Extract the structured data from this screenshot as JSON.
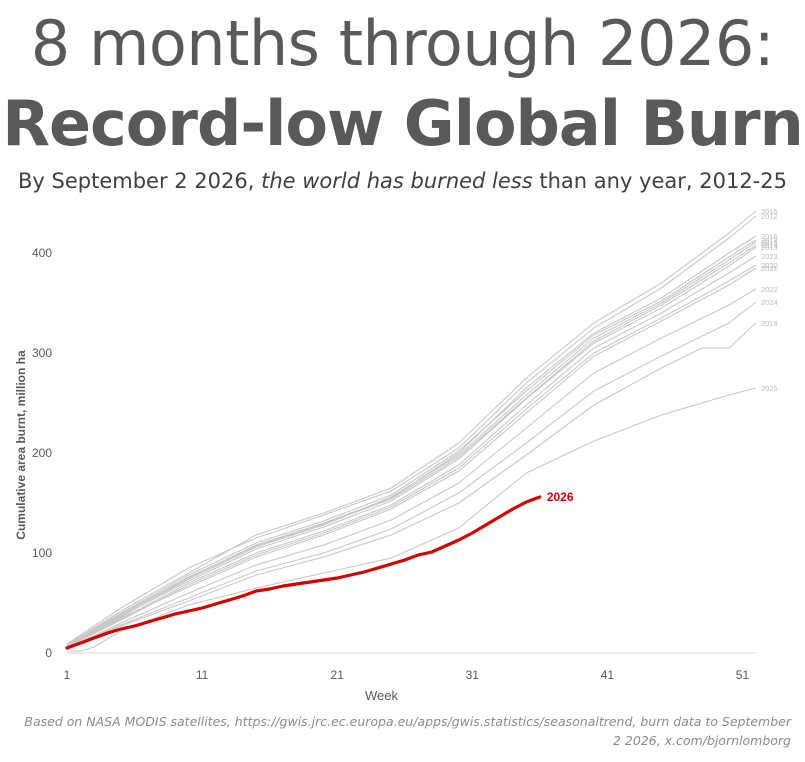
{
  "header": {
    "title_line1": "8 months through 2026:",
    "title_line2": "Record-low Global Burn",
    "subtitle_pre": "By September 2 2026, ",
    "subtitle_em": "the world has burned less",
    "subtitle_post": " than any year, 2012-25"
  },
  "footnote": "Based on NASA MODIS satellites, https://gwis.jrc.ec.europa.eu/apps/gwis.statistics/seasonaltrend, burn data to September 2 2026, x.com/bjornlomborg",
  "colors": {
    "highlight": "#d40000",
    "other_years": "#c8c8c8",
    "axis_text": "#595959",
    "year_label": "#bdbdbd"
  },
  "chart_data": {
    "type": "line",
    "xlabel": "Week",
    "ylabel": "Cumulative area burnt, million ha",
    "xlim": [
      1,
      52
    ],
    "ylim": [
      0,
      440
    ],
    "x_ticks": [
      1,
      11,
      21,
      31,
      41,
      51
    ],
    "y_ticks": [
      0,
      100,
      200,
      300,
      400
    ],
    "grid": false,
    "highlight_series": "2026",
    "series": [
      {
        "name": "2026",
        "x": [
          1,
          2,
          3,
          4,
          5,
          6,
          7,
          8,
          9,
          10,
          11,
          12,
          13,
          14,
          15,
          16,
          17,
          18,
          19,
          20,
          21,
          22,
          23,
          24,
          25,
          26,
          27,
          28,
          29,
          30,
          31,
          32,
          33,
          34,
          35,
          36
        ],
        "values": [
          5,
          10,
          15,
          20,
          24,
          27,
          31,
          35,
          39,
          42,
          45,
          49,
          53,
          57,
          62,
          64,
          67,
          69,
          71,
          73,
          75,
          78,
          81,
          85,
          89,
          93,
          98,
          101,
          107,
          113,
          120,
          128,
          136,
          144,
          151,
          156
        ]
      },
      {
        "name": "2015",
        "x": [
          1,
          5,
          10,
          15,
          20,
          25,
          30,
          35,
          40,
          45,
          50,
          52
        ],
        "values": [
          8,
          42,
          80,
          118,
          140,
          165,
          210,
          275,
          330,
          370,
          420,
          442
        ]
      },
      {
        "name": "2012",
        "x": [
          1,
          5,
          10,
          15,
          20,
          25,
          30,
          35,
          40,
          45,
          50,
          52
        ],
        "values": [
          9,
          45,
          85,
          115,
          138,
          162,
          205,
          270,
          325,
          365,
          415,
          437
        ]
      },
      {
        "name": "2016",
        "x": [
          1,
          5,
          10,
          15,
          20,
          25,
          30,
          35,
          40,
          45,
          50,
          52
        ],
        "values": [
          7,
          38,
          75,
          108,
          130,
          155,
          200,
          265,
          320,
          355,
          400,
          417
        ]
      },
      {
        "name": "2017",
        "x": [
          1,
          5,
          10,
          15,
          20,
          25,
          30,
          35,
          40,
          45,
          50,
          52
        ],
        "values": [
          8,
          40,
          78,
          110,
          132,
          158,
          202,
          262,
          318,
          352,
          396,
          413
        ]
      },
      {
        "name": "2019",
        "x": [
          1,
          5,
          10,
          15,
          20,
          25,
          30,
          35,
          40,
          45,
          50,
          52
        ],
        "values": [
          6,
          36,
          74,
          106,
          128,
          156,
          198,
          258,
          315,
          350,
          393,
          411
        ]
      },
      {
        "name": "2014",
        "x": [
          1,
          5,
          10,
          15,
          20,
          25,
          30,
          35,
          40,
          45,
          50,
          52
        ],
        "values": [
          8,
          39,
          76,
          107,
          129,
          154,
          196,
          255,
          312,
          348,
          390,
          408
        ]
      },
      {
        "name": "2013",
        "x": [
          1,
          5,
          10,
          15,
          20,
          25,
          30,
          35,
          40,
          45,
          50,
          52
        ],
        "values": [
          7,
          37,
          72,
          104,
          126,
          152,
          194,
          254,
          310,
          345,
          387,
          406
        ]
      },
      {
        "name": "2023",
        "x": [
          1,
          5,
          10,
          15,
          20,
          25,
          30,
          35,
          40,
          45,
          50,
          52
        ],
        "values": [
          6,
          34,
          70,
          100,
          122,
          148,
          188,
          248,
          305,
          340,
          380,
          397
        ]
      },
      {
        "name": "2020",
        "x": [
          1,
          5,
          10,
          15,
          20,
          25,
          30,
          35,
          40,
          45,
          50,
          52
        ],
        "values": [
          6,
          33,
          68,
          98,
          120,
          146,
          185,
          244,
          300,
          335,
          372,
          388
        ]
      },
      {
        "name": "2021",
        "x": [
          1,
          5,
          10,
          15,
          20,
          25,
          30,
          35,
          40,
          45,
          50,
          52
        ],
        "values": [
          7,
          35,
          66,
          96,
          118,
          144,
          182,
          240,
          297,
          332,
          368,
          385
        ]
      },
      {
        "name": "2022",
        "x": [
          1,
          5,
          10,
          15,
          20,
          25,
          30,
          35,
          40,
          45,
          50,
          52
        ],
        "values": [
          5,
          30,
          60,
          88,
          108,
          133,
          170,
          225,
          280,
          315,
          348,
          364
        ]
      },
      {
        "name": "2024",
        "x": [
          1,
          5,
          10,
          15,
          20,
          25,
          30,
          35,
          40,
          45,
          50,
          52
        ],
        "values": [
          5,
          28,
          55,
          82,
          100,
          124,
          160,
          210,
          262,
          297,
          330,
          351
        ]
      },
      {
        "name": "2018",
        "x": [
          1,
          5,
          10,
          15,
          20,
          25,
          30,
          35,
          40,
          45,
          48,
          50,
          52
        ],
        "values": [
          5,
          27,
          52,
          78,
          96,
          118,
          150,
          198,
          248,
          285,
          305,
          305,
          330
        ]
      },
      {
        "name": "2025",
        "x": [
          1,
          2,
          3,
          5,
          10,
          15,
          20,
          25,
          30,
          35,
          40,
          45,
          50,
          52
        ],
        "values": [
          2,
          2,
          6,
          22,
          48,
          65,
          80,
          95,
          125,
          180,
          212,
          238,
          258,
          265
        ]
      }
    ]
  }
}
